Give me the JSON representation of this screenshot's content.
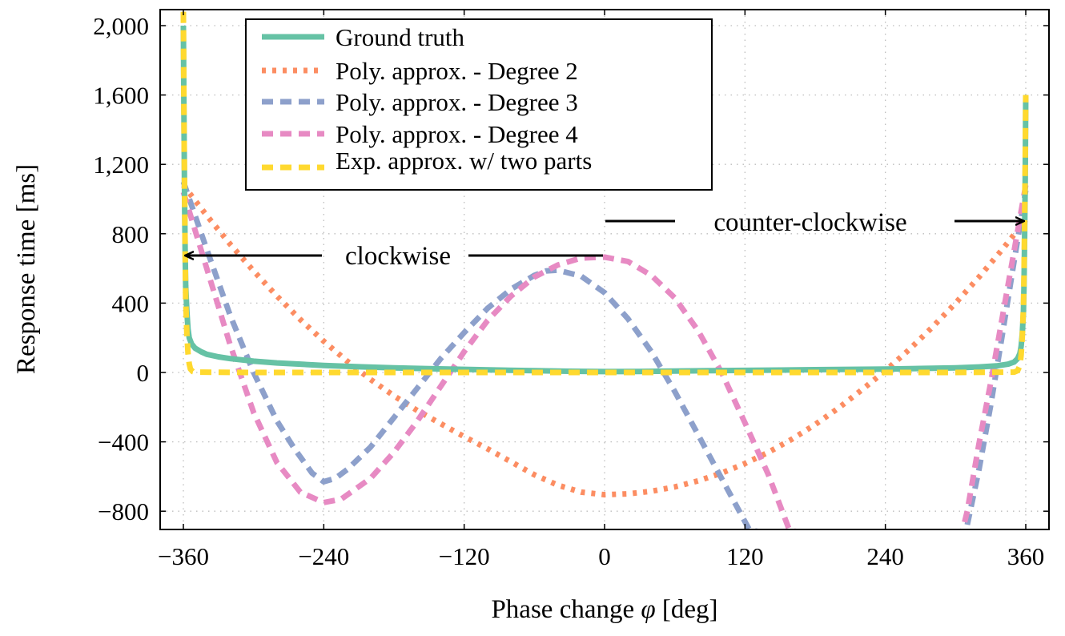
{
  "chart_data": {
    "type": "line",
    "xlabel_pre": "Phase change",
    "xlabel_sym": "φ",
    "xlabel_post": "[deg]",
    "ylabel": "Response time [ms]",
    "xlim": [
      -370,
      380
    ],
    "ylim": [
      -900,
      2100
    ],
    "xticks": [
      -360,
      -240,
      -120,
      0,
      120,
      240,
      360
    ],
    "xtick_labels": [
      "−360",
      "−240",
      "−120",
      "0",
      "120",
      "240",
      "360"
    ],
    "yticks": [
      -800,
      -400,
      0,
      400,
      800,
      1200,
      1600,
      2000
    ],
    "ytick_labels": [
      "−800",
      "−400",
      "0",
      "400",
      "800",
      "1,200",
      "1,600",
      "2,000"
    ],
    "grid": true,
    "legend_position": "top-left",
    "series": [
      {
        "name": "Ground truth",
        "color": "#66c2a5",
        "style": "solid",
        "points": [
          [
            -360,
            2000
          ],
          [
            -359.5,
            1500
          ],
          [
            -359,
            1000
          ],
          [
            -358.5,
            700
          ],
          [
            -358,
            500
          ],
          [
            -357,
            350
          ],
          [
            -356,
            250
          ],
          [
            -355,
            200
          ],
          [
            -353,
            165
          ],
          [
            -350,
            140
          ],
          [
            -345,
            120
          ],
          [
            -340,
            105
          ],
          [
            -330,
            90
          ],
          [
            -320,
            80
          ],
          [
            -300,
            65
          ],
          [
            -280,
            55
          ],
          [
            -260,
            48
          ],
          [
            -240,
            40
          ],
          [
            -210,
            33
          ],
          [
            -180,
            27
          ],
          [
            -150,
            22
          ],
          [
            -120,
            18
          ],
          [
            -90,
            14
          ],
          [
            -60,
            10
          ],
          [
            -30,
            7
          ],
          [
            0,
            5
          ],
          [
            30,
            6
          ],
          [
            60,
            8
          ],
          [
            90,
            10
          ],
          [
            120,
            12
          ],
          [
            150,
            14
          ],
          [
            180,
            16
          ],
          [
            210,
            18
          ],
          [
            240,
            20
          ],
          [
            270,
            23
          ],
          [
            300,
            27
          ],
          [
            320,
            32
          ],
          [
            335,
            38
          ],
          [
            345,
            48
          ],
          [
            350,
            60
          ],
          [
            353,
            80
          ],
          [
            355,
            110
          ],
          [
            356,
            150
          ],
          [
            357,
            220
          ],
          [
            358,
            350
          ],
          [
            358.5,
            500
          ],
          [
            359,
            750
          ],
          [
            359.5,
            1100
          ],
          [
            360,
            1600
          ]
        ]
      },
      {
        "name": "Poly. approx. - Degree 2",
        "color": "#fc8d62",
        "style": "dotted",
        "points": [
          [
            -360,
            1080
          ],
          [
            -340,
            905
          ],
          [
            -320,
            740
          ],
          [
            -300,
            585
          ],
          [
            -280,
            440
          ],
          [
            -260,
            305
          ],
          [
            -240,
            180
          ],
          [
            -220,
            65
          ],
          [
            -200,
            -40
          ],
          [
            -180,
            -135
          ],
          [
            -160,
            -220
          ],
          [
            -140,
            -295
          ],
          [
            -120,
            -370
          ],
          [
            -100,
            -440
          ],
          [
            -80,
            -515
          ],
          [
            -60,
            -590
          ],
          [
            -40,
            -650
          ],
          [
            -20,
            -690
          ],
          [
            0,
            -705
          ],
          [
            20,
            -700
          ],
          [
            40,
            -685
          ],
          [
            60,
            -660
          ],
          [
            80,
            -625
          ],
          [
            100,
            -580
          ],
          [
            120,
            -525
          ],
          [
            140,
            -460
          ],
          [
            160,
            -385
          ],
          [
            180,
            -300
          ],
          [
            200,
            -205
          ],
          [
            220,
            -100
          ],
          [
            240,
            10
          ],
          [
            260,
            130
          ],
          [
            280,
            260
          ],
          [
            300,
            400
          ],
          [
            320,
            550
          ],
          [
            340,
            710
          ],
          [
            360,
            880
          ]
        ]
      },
      {
        "name": "Poly. approx. - Degree 3",
        "color": "#8da0cb",
        "style": "dashed",
        "points": [
          [
            -360,
            1100
          ],
          [
            -340,
            710
          ],
          [
            -320,
            330
          ],
          [
            -300,
            0
          ],
          [
            -280,
            -280
          ],
          [
            -265,
            -440
          ],
          [
            -250,
            -580
          ],
          [
            -240,
            -630
          ],
          [
            -230,
            -610
          ],
          [
            -220,
            -560
          ],
          [
            -200,
            -430
          ],
          [
            -180,
            -260
          ],
          [
            -160,
            -90
          ],
          [
            -140,
            80
          ],
          [
            -120,
            230
          ],
          [
            -100,
            370
          ],
          [
            -80,
            480
          ],
          [
            -60,
            560
          ],
          [
            -50,
            585
          ],
          [
            -40,
            590
          ],
          [
            -20,
            555
          ],
          [
            0,
            460
          ],
          [
            20,
            310
          ],
          [
            40,
            120
          ],
          [
            60,
            -110
          ],
          [
            80,
            -360
          ],
          [
            100,
            -610
          ],
          [
            120,
            -860
          ],
          [
            124,
            -910
          ],
          [
            300,
            -1080
          ],
          [
            310,
            -880
          ],
          [
            320,
            -560
          ],
          [
            330,
            -190
          ],
          [
            340,
            220
          ],
          [
            350,
            640
          ],
          [
            360,
            1050
          ]
        ]
      },
      {
        "name": "Poly. approx. - Degree 4",
        "color": "#e78ac3",
        "style": "dashed",
        "points": [
          [
            -360,
            1040
          ],
          [
            -340,
            600
          ],
          [
            -320,
            160
          ],
          [
            -300,
            -230
          ],
          [
            -280,
            -520
          ],
          [
            -260,
            -690
          ],
          [
            -240,
            -750
          ],
          [
            -225,
            -730
          ],
          [
            -200,
            -610
          ],
          [
            -180,
            -460
          ],
          [
            -160,
            -280
          ],
          [
            -140,
            -80
          ],
          [
            -120,
            120
          ],
          [
            -100,
            300
          ],
          [
            -80,
            440
          ],
          [
            -60,
            550
          ],
          [
            -40,
            620
          ],
          [
            -20,
            660
          ],
          [
            0,
            665
          ],
          [
            20,
            640
          ],
          [
            40,
            560
          ],
          [
            60,
            430
          ],
          [
            80,
            240
          ],
          [
            100,
            0
          ],
          [
            120,
            -290
          ],
          [
            140,
            -590
          ],
          [
            158,
            -910
          ],
          [
            300,
            -1080
          ],
          [
            310,
            -800
          ],
          [
            320,
            -410
          ],
          [
            330,
            -60
          ],
          [
            340,
            320
          ],
          [
            350,
            700
          ],
          [
            360,
            1080
          ]
        ]
      },
      {
        "name": "Exp. approx. w/ two parts",
        "color": "#ffd92f",
        "style": "dashed",
        "points": [
          [
            -360,
            2080
          ],
          [
            -359.5,
            1500
          ],
          [
            -359,
            1050
          ],
          [
            -358.5,
            700
          ],
          [
            -358,
            420
          ],
          [
            -357,
            220
          ],
          [
            -356,
            110
          ],
          [
            -355,
            50
          ],
          [
            -354,
            20
          ],
          [
            -352,
            5
          ],
          [
            -350,
            2
          ],
          [
            -300,
            0
          ],
          [
            -200,
            0
          ],
          [
            -100,
            0
          ],
          [
            0,
            0
          ],
          [
            100,
            0
          ],
          [
            200,
            0
          ],
          [
            300,
            0
          ],
          [
            350,
            2
          ],
          [
            353,
            10
          ],
          [
            355,
            40
          ],
          [
            356,
            100
          ],
          [
            357,
            200
          ],
          [
            358,
            380
          ],
          [
            358.5,
            560
          ],
          [
            359,
            850
          ],
          [
            359.5,
            1200
          ],
          [
            360,
            1600
          ]
        ]
      }
    ],
    "annotations": [
      {
        "text": "clockwise",
        "arrow_tip": [
          -360,
          680
        ]
      },
      {
        "text": "counter-clockwise",
        "arrow_tip": [
          360,
          870
        ]
      }
    ]
  }
}
